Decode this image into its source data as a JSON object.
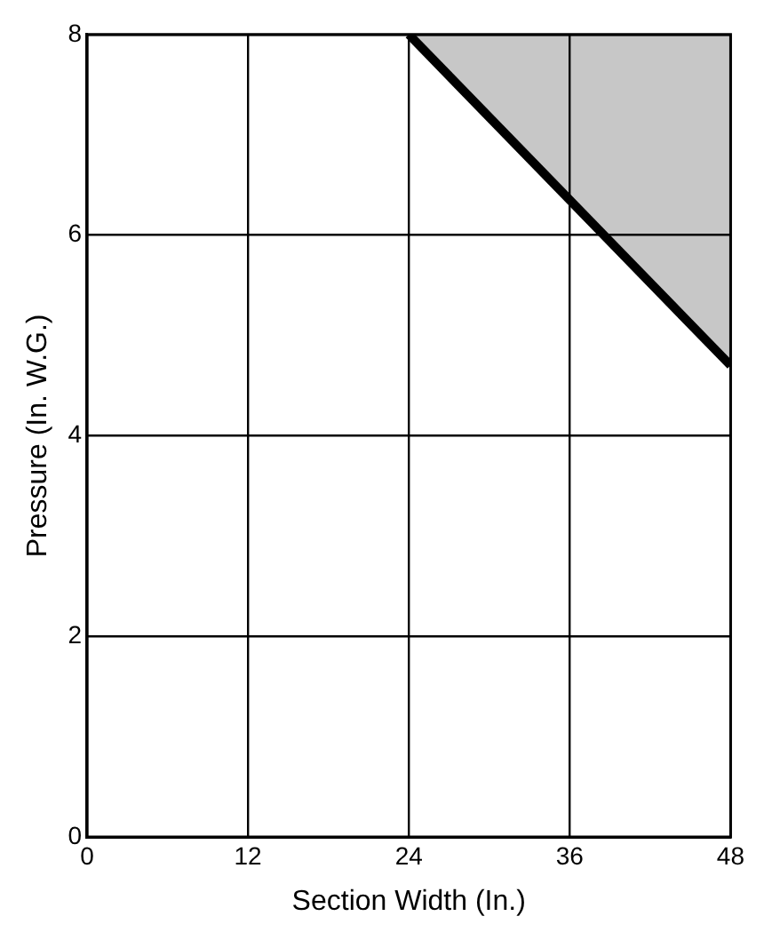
{
  "chart_data": {
    "type": "line",
    "xlabel": "Section Width (In.)",
    "ylabel": "Pressure (In. W.G.)",
    "series": [
      {
        "color": "#000000",
        "x": [
          24,
          48
        ],
        "values": [
          8,
          4.7
        ],
        "lower": [
          8,
          4.7
        ],
        "upper": [
          8,
          8
        ]
      }
    ],
    "xlim": [
      0,
      48
    ],
    "xticks": [
      0,
      12,
      24,
      36,
      48
    ],
    "ylim": [
      0,
      8
    ],
    "yticks": [
      0,
      2,
      4,
      6,
      8
    ],
    "grid": true,
    "legend": false,
    "marker": "none",
    "line_style": "solid"
  }
}
